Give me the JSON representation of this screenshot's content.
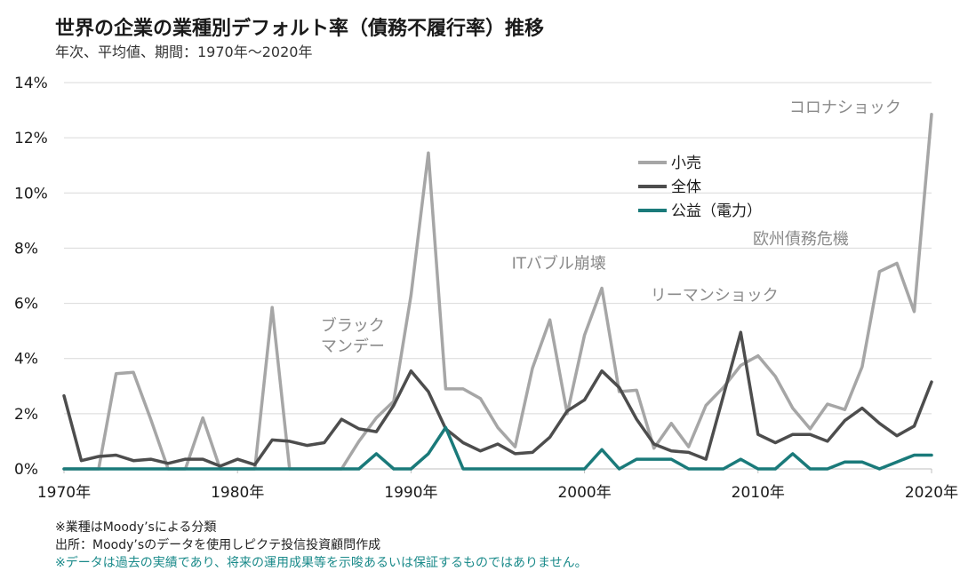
{
  "title": "世界の企業の業種別デフォルト率（債務不履行率）推移",
  "subtitle": "年次、平均値、期間：1970年〜2020年",
  "notes": [
    "※業種はMoody’sによる分類",
    "出所：Moody’sのデータを使用しピクテ投信投資顧問作成",
    "※データは過去の実績であり、将来の運用成果等を示唆あるいは保証するものではありません。"
  ],
  "chart_data": {
    "type": "line",
    "x": [
      1970,
      1971,
      1972,
      1973,
      1974,
      1975,
      1976,
      1977,
      1978,
      1979,
      1980,
      1981,
      1982,
      1983,
      1984,
      1985,
      1986,
      1987,
      1988,
      1989,
      1990,
      1991,
      1992,
      1993,
      1994,
      1995,
      1996,
      1997,
      1998,
      1999,
      2000,
      2001,
      2002,
      2003,
      2004,
      2005,
      2006,
      2007,
      2008,
      2009,
      2010,
      2011,
      2012,
      2013,
      2014,
      2015,
      2016,
      2017,
      2018,
      2019,
      2020
    ],
    "xlim": [
      1970,
      2020
    ],
    "ylim": [
      0,
      14
    ],
    "x_ticks": [
      "1970年",
      "1980年",
      "1990年",
      "2000年",
      "2010年",
      "2020年"
    ],
    "x_tick_values": [
      1970,
      1980,
      1990,
      2000,
      2010,
      2020
    ],
    "y_ticks": [
      "0%",
      "2%",
      "4%",
      "6%",
      "8%",
      "10%",
      "12%",
      "14%"
    ],
    "y_tick_values": [
      0,
      2,
      4,
      6,
      8,
      10,
      12,
      14
    ],
    "grid": true,
    "legend_position": "top-right",
    "series": [
      {
        "name": "小売",
        "color": "#a6a6a6",
        "values": [
          0,
          0,
          0,
          3.45,
          3.5,
          1.8,
          0,
          0,
          1.85,
          0,
          0,
          0,
          5.85,
          0,
          0,
          0,
          0,
          1.0,
          1.85,
          2.45,
          6.3,
          11.45,
          2.9,
          2.9,
          2.55,
          1.5,
          0.8,
          3.65,
          5.4,
          2.0,
          4.85,
          6.55,
          2.8,
          2.85,
          0.75,
          1.65,
          0.8,
          2.3,
          2.95,
          3.75,
          4.1,
          3.35,
          2.2,
          1.45,
          2.35,
          2.15,
          3.7,
          7.15,
          7.45,
          5.7,
          12.85
        ]
      },
      {
        "name": "全体",
        "color": "#4d4d4d",
        "values": [
          2.65,
          0.3,
          0.45,
          0.5,
          0.3,
          0.35,
          0.2,
          0.35,
          0.35,
          0.1,
          0.35,
          0.15,
          1.05,
          1.0,
          0.85,
          0.95,
          1.8,
          1.45,
          1.35,
          2.3,
          3.55,
          2.8,
          1.45,
          0.95,
          0.65,
          0.9,
          0.55,
          0.6,
          1.15,
          2.1,
          2.5,
          3.55,
          2.95,
          1.8,
          0.9,
          0.65,
          0.6,
          0.35,
          2.65,
          4.95,
          1.25,
          0.95,
          1.25,
          1.25,
          1.0,
          1.75,
          2.2,
          1.65,
          1.2,
          1.55,
          3.15
        ]
      },
      {
        "name": "公益（電力）",
        "color": "#1a7a7a",
        "values": [
          0,
          0,
          0,
          0,
          0,
          0,
          0,
          0,
          0,
          0,
          0,
          0,
          0,
          0,
          0,
          0,
          0,
          0,
          0.55,
          0,
          0,
          0.55,
          1.5,
          0,
          0,
          0,
          0,
          0,
          0,
          0,
          0,
          0.7,
          0,
          0.35,
          0.35,
          0.35,
          0,
          0,
          0,
          0.35,
          0,
          0,
          0.55,
          0,
          0,
          0.25,
          0.25,
          0,
          0.25,
          0.5,
          0.5
        ]
      }
    ],
    "annotations": [
      {
        "text": "ブラック",
        "x": 1984.8,
        "y": 5.0
      },
      {
        "text": "マンデー",
        "x": 1984.8,
        "y": 4.25
      },
      {
        "text": "ITバブル崩壊",
        "x": 1995.8,
        "y": 7.25
      },
      {
        "text": "リーマンショック",
        "x": 2003.8,
        "y": 6.1
      },
      {
        "text": "欧州債務危機",
        "x": 2009.7,
        "y": 8.15
      },
      {
        "text": "コロナショック",
        "x": 2011.8,
        "y": 12.9
      }
    ]
  }
}
